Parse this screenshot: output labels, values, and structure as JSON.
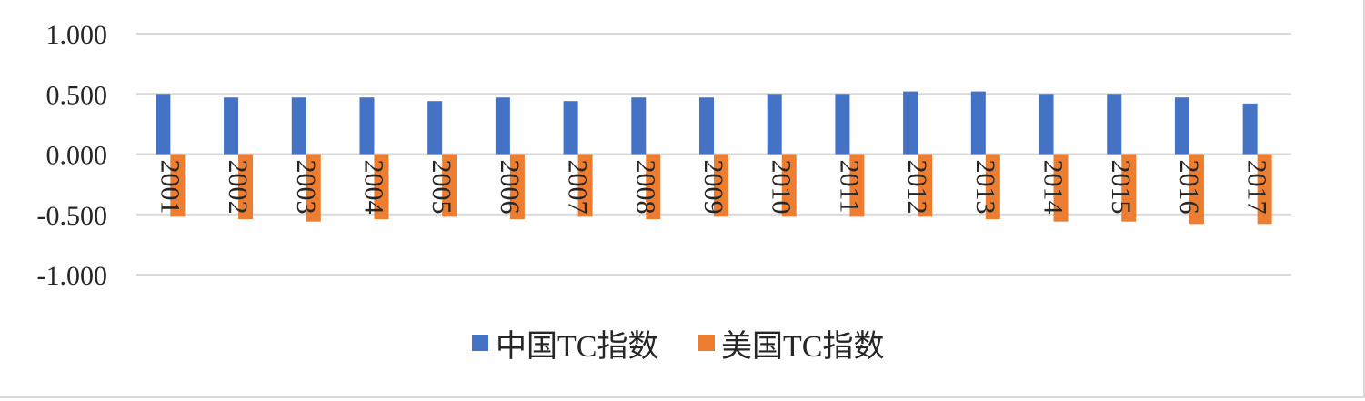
{
  "chart_data": {
    "type": "bar",
    "title": "",
    "xlabel": "",
    "ylabel": "",
    "categories": [
      "2001",
      "2002",
      "2003",
      "2004",
      "2005",
      "2006",
      "2007",
      "2008",
      "2009",
      "2010",
      "2011",
      "2012",
      "2013",
      "2014",
      "2015",
      "2016",
      "2017"
    ],
    "series": [
      {
        "name": "中国TC指数",
        "color": "#4472c4",
        "values": [
          0.5,
          0.47,
          0.47,
          0.47,
          0.44,
          0.47,
          0.44,
          0.47,
          0.47,
          0.5,
          0.5,
          0.52,
          0.52,
          0.5,
          0.5,
          0.47,
          0.42
        ]
      },
      {
        "name": "美国TC指数",
        "color": "#ed7d31",
        "values": [
          -0.52,
          -0.54,
          -0.56,
          -0.54,
          -0.52,
          -0.54,
          -0.52,
          -0.54,
          -0.52,
          -0.52,
          -0.52,
          -0.52,
          -0.54,
          -0.56,
          -0.56,
          -0.58,
          -0.58
        ]
      }
    ],
    "ylim": [
      -1.0,
      1.0
    ],
    "yticks": [
      "1.000",
      "0.500",
      "0.000",
      "-0.500",
      "-1.000"
    ],
    "ytick_values": [
      1.0,
      0.5,
      0.0,
      -0.5,
      -1.0
    ],
    "grid": true,
    "legend_position": "bottom"
  }
}
